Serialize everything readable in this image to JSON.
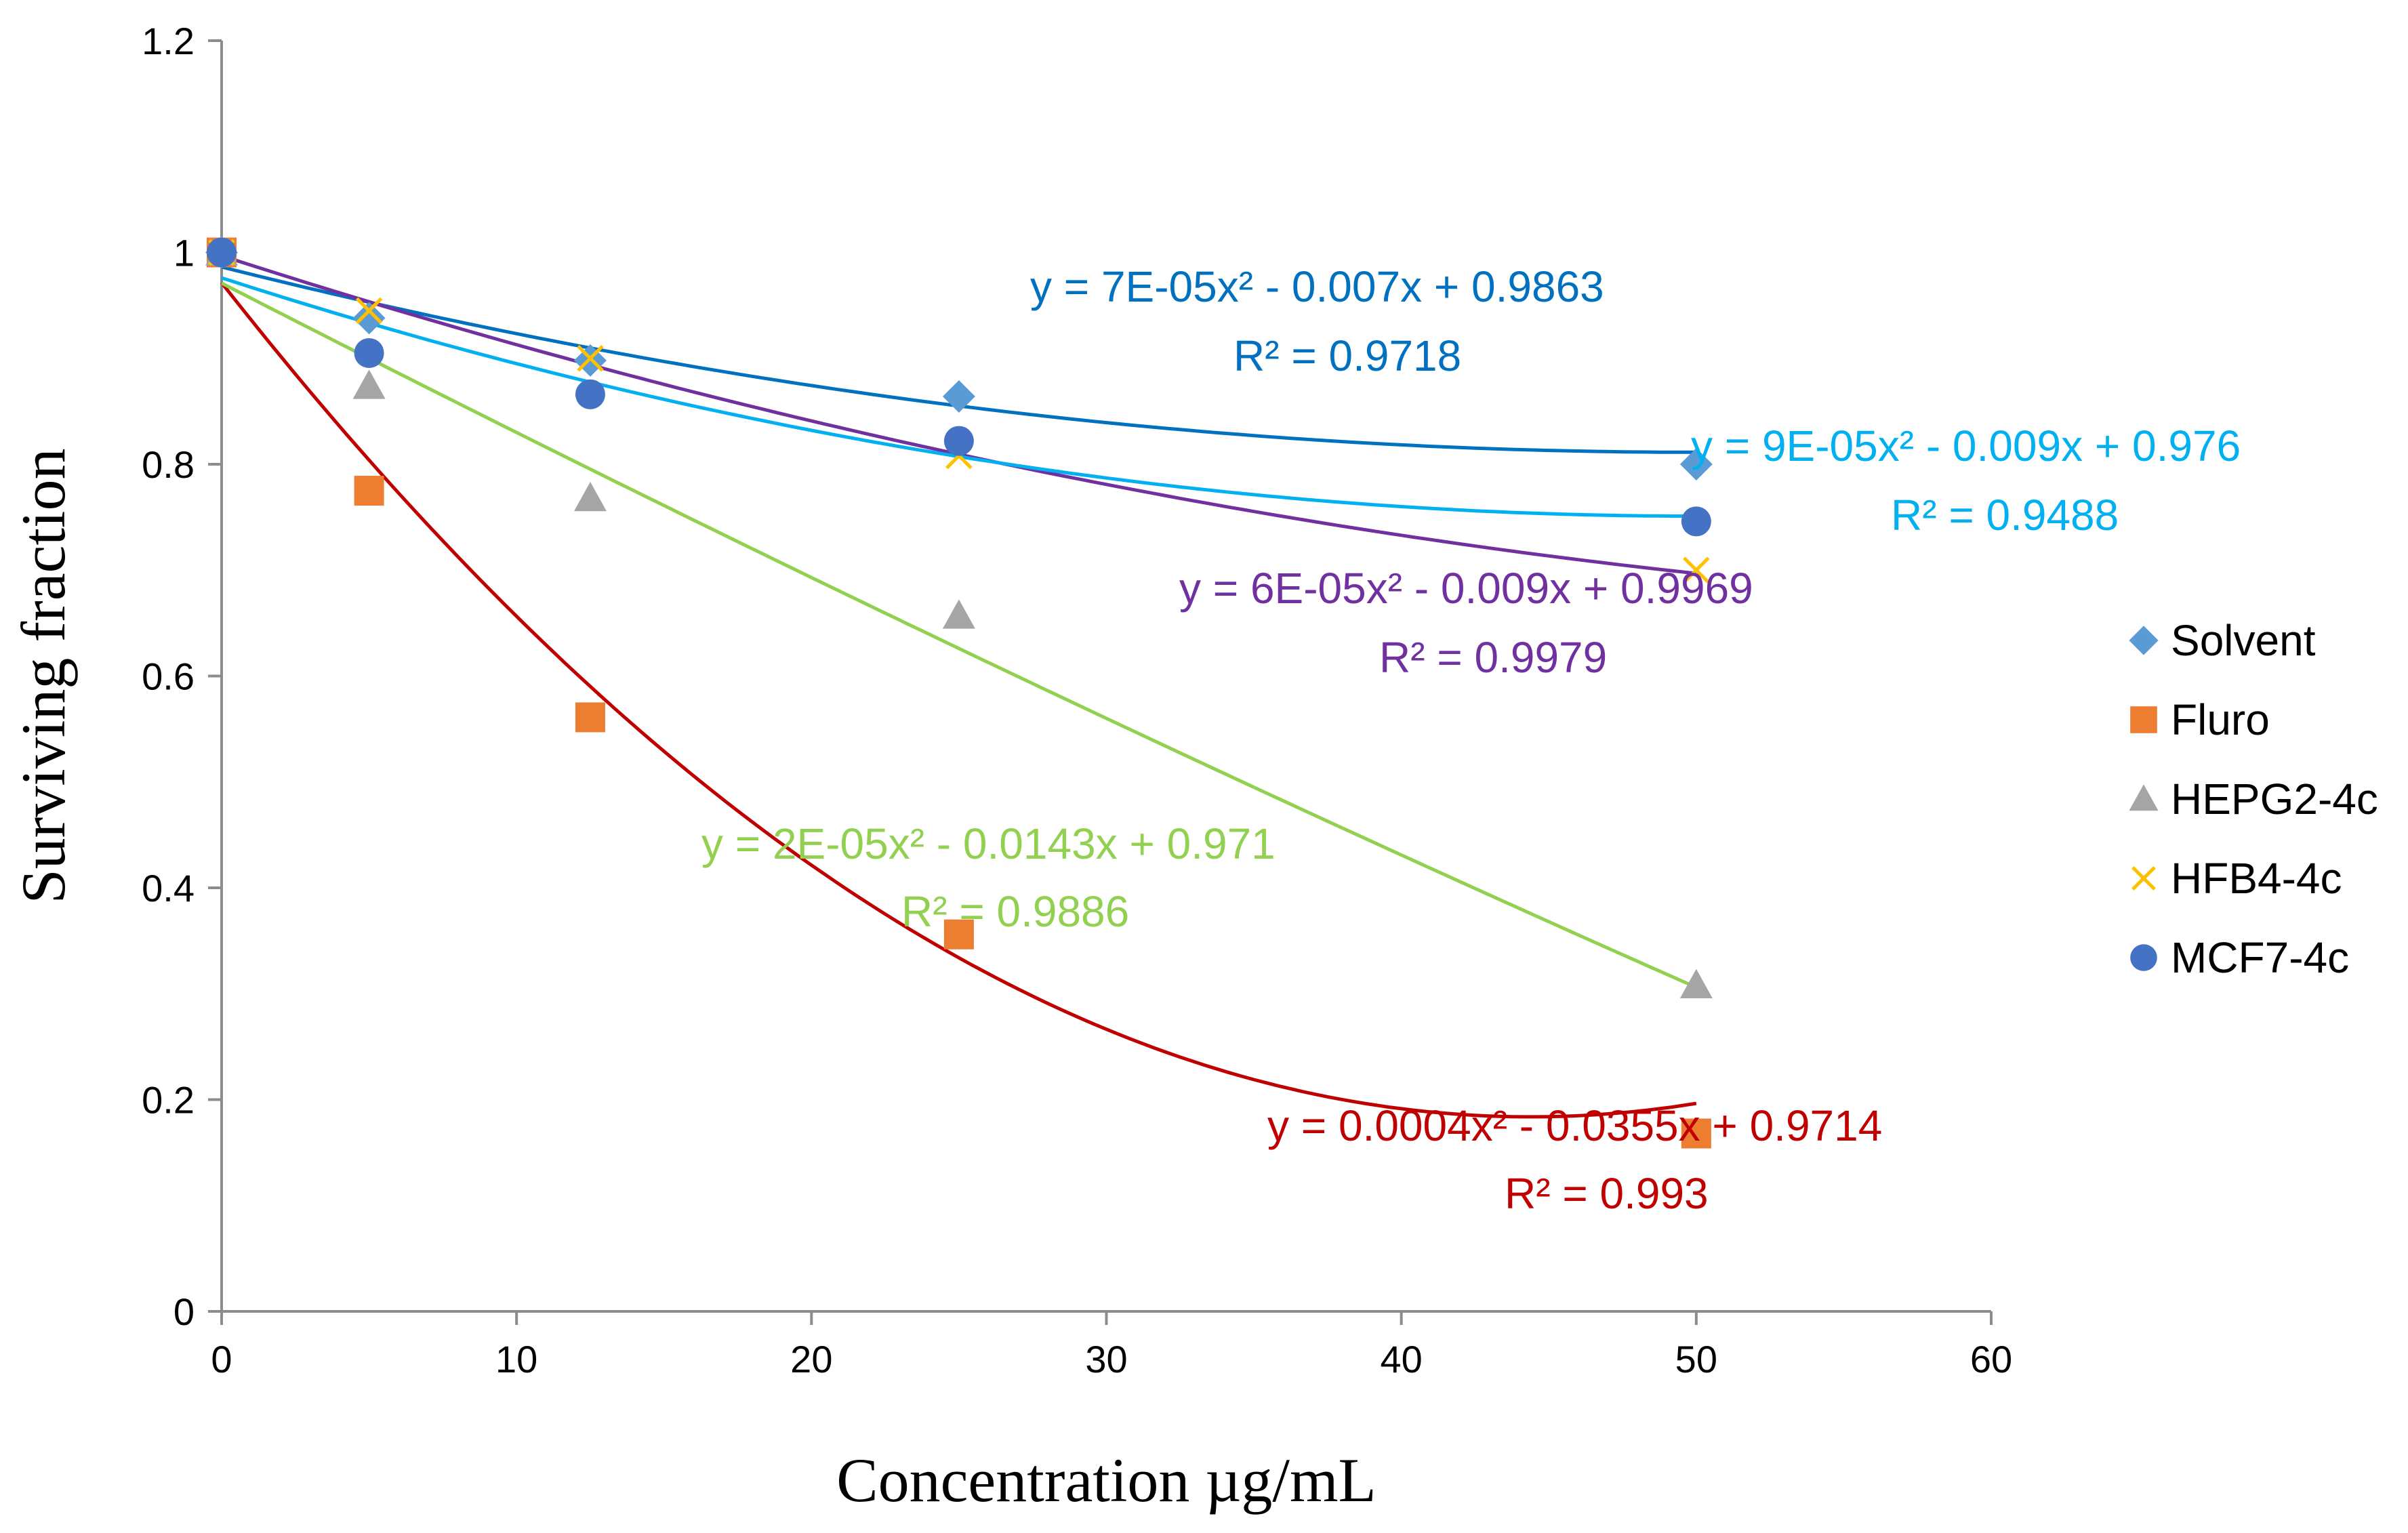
{
  "chart_data": {
    "type": "scatter",
    "xlabel": "Concentration µg/mL",
    "ylabel": "Surviving  fraction",
    "xlim": [
      0,
      60
    ],
    "ylim": [
      0,
      1.2
    ],
    "xticks": [
      0,
      10,
      20,
      30,
      40,
      50,
      60
    ],
    "yticks": [
      0,
      0.2,
      0.4,
      0.6,
      0.8,
      1,
      1.2
    ],
    "xtick_labels": [
      "0",
      "10",
      "20",
      "30",
      "40",
      "50",
      "60"
    ],
    "ytick_labels": [
      "0",
      "0.2",
      "0.4",
      "0.6",
      "0.8",
      "1",
      "1.2"
    ],
    "grid": false,
    "legend_position": "right",
    "x": [
      0,
      5,
      12.5,
      25,
      50
    ],
    "series": [
      {
        "name": "Solvent",
        "marker": "diamond",
        "color": "#5b9bd5",
        "values": [
          1.0,
          0.938,
          0.898,
          0.864,
          0.8
        ]
      },
      {
        "name": "Fluro",
        "marker": "square",
        "color": "#ed7d31",
        "values": [
          1.0,
          0.775,
          0.561,
          0.356,
          0.168
        ]
      },
      {
        "name": "HEPG2-4c",
        "marker": "triangle",
        "color": "#a5a5a5",
        "values": [
          1.0,
          0.874,
          0.768,
          0.657,
          0.308
        ]
      },
      {
        "name": "HFB4-4c",
        "marker": "x",
        "color": "#ffc000",
        "values": [
          1.0,
          0.945,
          0.9,
          0.808,
          0.7
        ]
      },
      {
        "name": "MCF7-4c",
        "marker": "circle",
        "color": "#4472c4",
        "values": [
          1.0,
          0.905,
          0.866,
          0.822,
          0.746
        ]
      }
    ],
    "trendlines": [
      {
        "name": "Solvent trend",
        "color": "#0070c0",
        "a": 7e-05,
        "b": -0.007,
        "c": 0.9863,
        "equation": "y = 7E-05x² - 0.007x + 0.9863",
        "r2": "R² = 0.9718"
      },
      {
        "name": "Fluro trend",
        "color": "#c00000",
        "a": 0.0004,
        "b": -0.0355,
        "c": 0.9714,
        "equation": "y = 0.0004x² - 0.0355x + 0.9714",
        "r2": "R² = 0.993"
      },
      {
        "name": "HEPG2-4c trend",
        "color": "#92d050",
        "a": 2e-05,
        "b": -0.0143,
        "c": 0.971,
        "equation": "y = 2E-05x² - 0.0143x + 0.971",
        "r2": "R² = 0.9886"
      },
      {
        "name": "HFB4-4c trend",
        "color": "#7030a0",
        "a": 6e-05,
        "b": -0.009,
        "c": 0.9969,
        "equation": "y = 6E-05x² - 0.009x + 0.9969",
        "r2": "R² = 0.9979"
      },
      {
        "name": "MCF7-4c trend",
        "color": "#00b0f0",
        "a": 9e-05,
        "b": -0.009,
        "c": 0.976,
        "equation": "y = 9E-05x² - 0.009x + 0.976",
        "r2": "R² = 0.9488"
      }
    ]
  }
}
